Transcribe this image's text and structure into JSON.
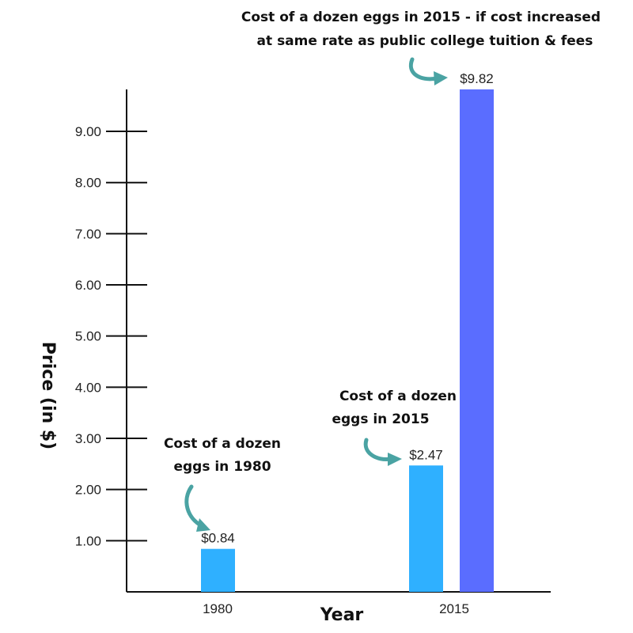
{
  "chart_data": {
    "type": "bar",
    "categories": [
      "1980",
      "2015"
    ],
    "series": [
      {
        "values": [
          0.84,
          2.47
        ],
        "color": "#2fb0ff"
      },
      {
        "values": [
          null,
          9.82
        ],
        "color": "#5a6dff"
      }
    ],
    "data_labels": [
      "$0.84",
      "$2.47",
      "$9.82"
    ],
    "ylabel": "Price (in $)",
    "xlabel": "Year",
    "ylim": [
      0,
      9.82
    ],
    "yticks": [
      1,
      2,
      3,
      4,
      5,
      6,
      7,
      8,
      9
    ],
    "ytick_labels": [
      "1.00",
      "2.00",
      "3.00",
      "4.00",
      "5.00",
      "6.00",
      "7.00",
      "8.00",
      "9.00"
    ],
    "grid": false,
    "annotations": [
      {
        "lines": [
          "Cost of a dozen",
          "eggs in 1980"
        ],
        "target": "$0.84",
        "arrow_color": "#4aa3a3"
      },
      {
        "lines": [
          "Cost of a dozen",
          "eggs in 2015"
        ],
        "target": "$2.47",
        "arrow_color": "#4aa3a3"
      },
      {
        "lines": [
          "Cost of a dozen eggs in 2015 - if cost increased",
          "at same rate as public college tuition & fees"
        ],
        "target": "$9.82",
        "arrow_color": "#4aa3a3"
      }
    ]
  }
}
